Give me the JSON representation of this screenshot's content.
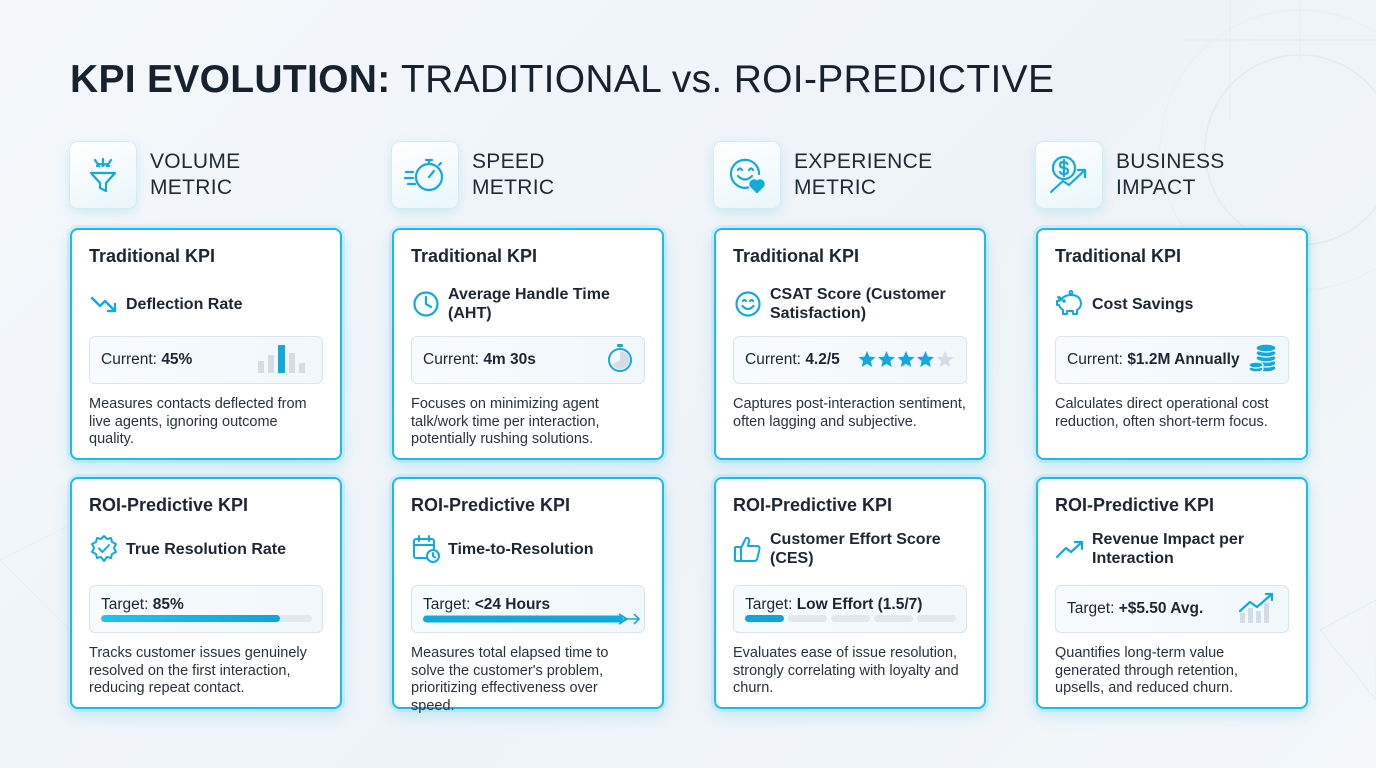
{
  "title": {
    "bold": "KPI EVOLUTION:",
    "light": "TRADITIONAL vs. ROI-PREDICTIVE"
  },
  "colors": {
    "accent": "#1dbbe8",
    "text": "#1c2733",
    "track": "#e2e8ee"
  },
  "columns": [
    {
      "label": "VOLUME\nMETRIC",
      "icon": "funnel-icon",
      "traditional": {
        "heading": "Traditional KPI",
        "name": "Deflection Rate",
        "icon": "trend-down-icon",
        "value_prefix": "Current:",
        "value": "45%",
        "visual_icon": "bar-chart-icon",
        "description": "Measures contacts deflected from live agents, ignoring outcome quality."
      },
      "roi": {
        "heading": "ROI-Predictive KPI",
        "name": "True Resolution Rate",
        "icon": "badge-check-icon",
        "value_prefix": "Target:",
        "value": "85%",
        "progress": 0.85,
        "description": "Tracks customer issues genuinely resolved on the first interaction, reducing repeat contact."
      }
    },
    {
      "label": "SPEED\nMETRIC",
      "icon": "stopwatch-speed-icon",
      "traditional": {
        "heading": "Traditional KPI",
        "name": "Average Handle Time (AHT)",
        "icon": "clock-icon",
        "value_prefix": "Current:",
        "value": "4m 30s",
        "visual_icon": "stopwatch-icon",
        "description": "Focuses on minimizing agent talk/work time per interaction, potentially rushing solutions."
      },
      "roi": {
        "heading": "ROI-Predictive KPI",
        "name": "Time-to-Resolution",
        "icon": "calendar-clock-icon",
        "value_prefix": "Target:",
        "value": "<24 Hours",
        "progress": 0.85,
        "description": "Measures total elapsed time to solve the customer's problem, prioritizing effectiveness over speed."
      }
    },
    {
      "label": "EXPERIENCE\nMETRIC",
      "icon": "smiley-heart-icon",
      "traditional": {
        "heading": "Traditional KPI",
        "name": "CSAT Score (Customer Satisfaction)",
        "icon": "smiley-icon",
        "value_prefix": "Current:",
        "value": "4.2/5",
        "rating": 4.2,
        "rating_max": 5,
        "visual_icon": "star-rating-icon",
        "description": "Captures post-interaction sentiment, often lagging and subjective."
      },
      "roi": {
        "heading": "ROI-Predictive KPI",
        "name": "Customer Effort Score (CES)",
        "icon": "thumbs-up-icon",
        "value_prefix": "Target:",
        "value": "Low Effort (1.5/7)",
        "segments_on": 1,
        "segments_total": 5,
        "description": "Evaluates ease of issue resolution, strongly correlating with loyalty and churn."
      }
    },
    {
      "label": "BUSINESS\nIMPACT",
      "icon": "dollar-growth-icon",
      "traditional": {
        "heading": "Traditional KPI",
        "name": "Cost Savings",
        "icon": "piggy-bank-icon",
        "value_prefix": "Current:",
        "value": "$1.2M Annually",
        "visual_icon": "coin-stack-icon",
        "description": "Calculates direct operational cost reduction, often short-term focus."
      },
      "roi": {
        "heading": "ROI-Predictive KPI",
        "name": "Revenue Impact per Interaction",
        "icon": "trend-up-icon",
        "value_prefix": "Target:",
        "value": "+$5.50 Avg.",
        "visual_icon": "growth-bars-icon",
        "description": "Quantifies long-term value generated through retention, upsells, and reduced churn."
      }
    }
  ]
}
